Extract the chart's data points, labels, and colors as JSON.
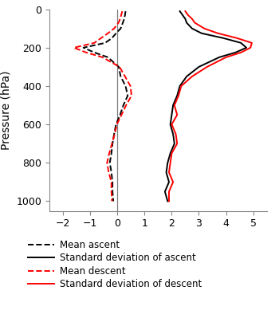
{
  "pressure_levels": [
    10,
    30,
    50,
    70,
    100,
    125,
    150,
    175,
    200,
    225,
    250,
    300,
    350,
    400,
    450,
    500,
    550,
    600,
    650,
    700,
    750,
    800,
    850,
    900,
    950,
    1000
  ],
  "mean_ascent": [
    0.3,
    0.28,
    0.25,
    0.2,
    0.12,
    -0.05,
    -0.2,
    -0.45,
    -1.25,
    -0.85,
    -0.35,
    0.05,
    0.12,
    0.3,
    0.38,
    0.22,
    0.1,
    -0.05,
    -0.12,
    -0.18,
    -0.22,
    -0.28,
    -0.22,
    -0.18,
    -0.18,
    -0.15
  ],
  "std_ascent": [
    2.3,
    2.4,
    2.5,
    2.55,
    2.75,
    3.1,
    3.9,
    4.55,
    4.75,
    4.35,
    3.75,
    3.0,
    2.55,
    2.3,
    2.2,
    2.05,
    2.0,
    1.95,
    2.05,
    2.1,
    1.95,
    1.85,
    1.8,
    1.9,
    1.75,
    1.85
  ],
  "mean_descent": [
    0.18,
    0.14,
    0.1,
    0.04,
    -0.12,
    -0.35,
    -0.6,
    -0.85,
    -1.6,
    -1.15,
    -0.55,
    0.08,
    0.28,
    0.48,
    0.52,
    0.32,
    0.15,
    -0.02,
    -0.1,
    -0.2,
    -0.3,
    -0.38,
    -0.32,
    -0.22,
    -0.22,
    -0.2
  ],
  "std_descent": [
    2.5,
    2.6,
    2.75,
    2.85,
    3.2,
    3.7,
    4.4,
    4.95,
    4.9,
    4.55,
    4.0,
    3.3,
    2.75,
    2.35,
    2.25,
    2.1,
    2.2,
    2.0,
    2.15,
    2.2,
    2.0,
    1.95,
    1.9,
    2.05,
    1.9,
    1.9
  ],
  "xlim": [
    -2.5,
    5.5
  ],
  "xticks": [
    -2,
    -1,
    0,
    1,
    2,
    3,
    4,
    5
  ],
  "ylim": [
    1050,
    5
  ],
  "yticks": [
    0,
    200,
    400,
    600,
    800,
    1000
  ],
  "ylabel": "Pressure (hPa)",
  "vline_x": 0,
  "color_black": "#000000",
  "color_red": "#ff0000",
  "legend_entries": [
    "Mean ascent",
    "Standard deviation of ascent",
    "Mean descent",
    "Standard deviation of descent"
  ],
  "line_width": 1.4,
  "tick_fontsize": 9,
  "label_fontsize": 10
}
